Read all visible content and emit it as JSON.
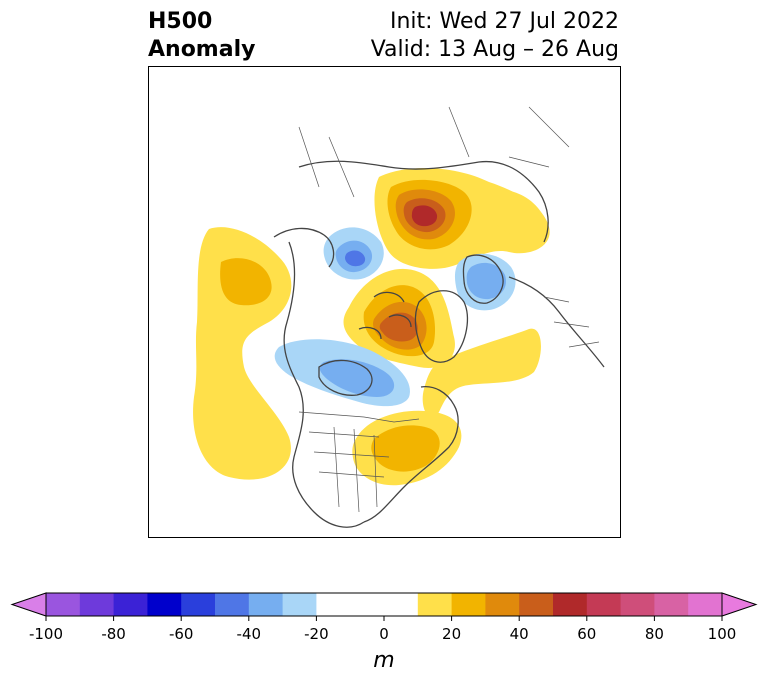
{
  "header": {
    "title_line1": "H500",
    "title_line2": "Anomaly",
    "init_text": "Init: Wed 27 Jul 2022",
    "valid_text": "Valid: 13 Aug – 26 Aug"
  },
  "map": {
    "projection": "polar stereographic, North America / Arctic",
    "anomalies": [
      {
        "region": "central-siberia",
        "sign": "positive",
        "peak_m": 60
      },
      {
        "region": "canadian-arctic-archipelago",
        "sign": "positive",
        "peak_m": 50
      },
      {
        "region": "great-lakes-northeast-us",
        "sign": "positive",
        "peak_m": 30
      },
      {
        "region": "northeast-pacific",
        "sign": "positive",
        "peak_m": 20
      },
      {
        "region": "north-atlantic-greenland",
        "sign": "positive",
        "peak_m": 10
      },
      {
        "region": "eastern-siberia",
        "sign": "positive",
        "peak_m": 20
      },
      {
        "region": "western-siberia-arctic",
        "sign": "negative",
        "peak_m": -40
      },
      {
        "region": "scandinavia-barents",
        "sign": "negative",
        "peak_m": -30
      },
      {
        "region": "hudson-bay-central-canada",
        "sign": "negative",
        "peak_m": -30
      }
    ]
  },
  "colorbar": {
    "unit_label": "m",
    "levels": [
      -100,
      -90,
      -80,
      -70,
      -60,
      -50,
      -40,
      -30,
      -20,
      -10,
      10,
      20,
      30,
      40,
      50,
      60,
      70,
      80,
      90,
      100
    ],
    "colors": [
      "#9a55df",
      "#6e3adb",
      "#3b22d6",
      "#0000cc",
      "#2a3fdc",
      "#4f76e6",
      "#76aef0",
      "#a9d6f7",
      "#ffffff",
      "#ffffff",
      "#ffe04a",
      "#f2b400",
      "#e08a0c",
      "#c95e1b",
      "#b0292a",
      "#c43a55",
      "#cf4e7a",
      "#d862a4",
      "#e273d1"
    ],
    "under_color": "#d97fe8",
    "over_color": "#e87ade",
    "tick_labels": [
      "-100",
      "-80",
      "-60",
      "-40",
      "-20",
      "0",
      "20",
      "40",
      "60",
      "80",
      "100"
    ]
  }
}
